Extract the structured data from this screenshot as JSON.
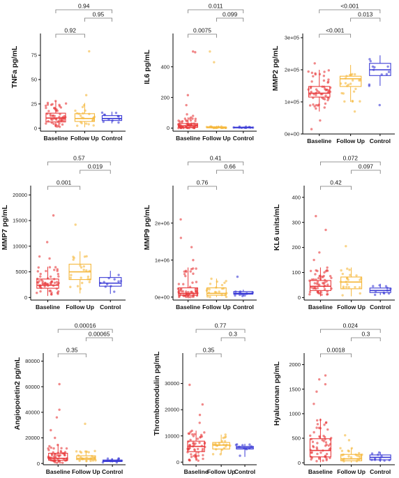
{
  "chart_data": [
    {
      "type": "box",
      "ylabel": "TNFa  pg/mL",
      "categories": [
        "Baseline",
        "Follow Up",
        "Control"
      ],
      "colors": [
        "#e8393b",
        "#f5b73b",
        "#3a3ad6"
      ],
      "ylim": [
        -3,
        93
      ],
      "yticks": [
        {
          "v": 0,
          "t": "0"
        },
        {
          "v": 25,
          "t": "25"
        },
        {
          "v": 50,
          "t": "50"
        },
        {
          "v": 75,
          "t": "75"
        }
      ],
      "boxes": [
        {
          "q1": 6.5,
          "med": 10.5,
          "q3": 15.5,
          "lo": 1,
          "hi": 28,
          "n": 55
        },
        {
          "q1": 7,
          "med": 10,
          "q3": 15,
          "lo": 1,
          "hi": 26,
          "n": 22,
          "extra": [
            79,
            34
          ]
        },
        {
          "q1": 8,
          "med": 10,
          "q3": 13,
          "lo": 5,
          "hi": 17,
          "n": 11
        }
      ],
      "comparisons": [
        {
          "from": 0,
          "to": 1,
          "label": "0.92"
        },
        {
          "from": 1,
          "to": 2,
          "label": "0.95"
        },
        {
          "from": 0,
          "to": 2,
          "label": "0.94"
        }
      ]
    },
    {
      "type": "box",
      "ylabel": "IL6  pg/mL",
      "categories": [
        "Baseline",
        "Follow Up",
        "Control"
      ],
      "colors": [
        "#e8393b",
        "#f5b73b",
        "#3a3ad6"
      ],
      "ylim": [
        -20,
        590
      ],
      "yticks": [
        {
          "v": 0,
          "t": "0"
        },
        {
          "v": 200,
          "t": "200"
        },
        {
          "v": 400,
          "t": "400"
        }
      ],
      "boxes": [
        {
          "q1": 5,
          "med": 15,
          "q3": 30,
          "lo": 0,
          "hi": 70,
          "n": 55,
          "extra": [
            500,
            495,
            215,
            150,
            90,
            80
          ]
        },
        {
          "q1": 2,
          "med": 4,
          "q3": 8,
          "lo": 0,
          "hi": 15,
          "n": 22,
          "extra": [
            430,
            500
          ]
        },
        {
          "q1": 2,
          "med": 4,
          "q3": 6,
          "lo": 1,
          "hi": 10,
          "n": 11
        }
      ],
      "comparisons": [
        {
          "from": 0,
          "to": 1,
          "label": "0.0075"
        },
        {
          "from": 1,
          "to": 2,
          "label": "0.099"
        },
        {
          "from": 0,
          "to": 2,
          "label": "0.011"
        }
      ]
    },
    {
      "type": "box",
      "ylabel": "MMP2  pg/mL",
      "categories": [
        "Baseline",
        "Follow Up",
        "Control"
      ],
      "colors": [
        "#e8393b",
        "#f5b73b",
        "#3a3ad6"
      ],
      "ylim": [
        0,
        300000
      ],
      "yticks": [
        {
          "v": 0,
          "t": "0e+00"
        },
        {
          "v": 100000,
          "t": "1e+05"
        },
        {
          "v": 200000,
          "t": "2e+05"
        },
        {
          "v": 300000,
          "t": "3e+05"
        }
      ],
      "boxes": [
        {
          "q1": 115000,
          "med": 127000,
          "q3": 148000,
          "lo": 70000,
          "hi": 200000,
          "n": 55,
          "extra": [
            15000,
            42000,
            220000
          ]
        },
        {
          "q1": 148000,
          "med": 172000,
          "q3": 180000,
          "lo": 100000,
          "hi": 215000,
          "n": 22,
          "extra": [
            70000
          ]
        },
        {
          "q1": 182000,
          "med": 200000,
          "q3": 220000,
          "lo": 150000,
          "hi": 245000,
          "n": 11,
          "extra": [
            90000
          ]
        }
      ],
      "comparisons": [
        {
          "from": 0,
          "to": 1,
          "label": "<0.001"
        },
        {
          "from": 1,
          "to": 2,
          "label": "0.013"
        },
        {
          "from": 0,
          "to": 2,
          "label": "<0.001"
        }
      ]
    },
    {
      "type": "box",
      "ylabel": "MMP7  pg/mL",
      "categories": [
        "Baseline",
        "Follow Up",
        "Control"
      ],
      "colors": [
        "#e8393b",
        "#f5b73b",
        "#3a3ad6"
      ],
      "ylim": [
        -500,
        21000
      ],
      "yticks": [
        {
          "v": 0,
          "t": "0"
        },
        {
          "v": 5000,
          "t": "5000"
        },
        {
          "v": 10000,
          "t": "10000"
        },
        {
          "v": 15000,
          "t": "15000"
        },
        {
          "v": 20000,
          "t": "20000"
        }
      ],
      "boxes": [
        {
          "q1": 1800,
          "med": 2400,
          "q3": 3600,
          "lo": 300,
          "hi": 6000,
          "n": 55,
          "extra": [
            16000,
            10800,
            8000,
            7600
          ]
        },
        {
          "q1": 3500,
          "med": 5000,
          "q3": 6500,
          "lo": 800,
          "hi": 9000,
          "n": 22,
          "extra": [
            14200
          ]
        },
        {
          "q1": 2200,
          "med": 2800,
          "q3": 3900,
          "lo": 700,
          "hi": 5200,
          "n": 11
        }
      ],
      "comparisons": [
        {
          "from": 0,
          "to": 1,
          "label": "0.001"
        },
        {
          "from": 1,
          "to": 2,
          "label": "0.019"
        },
        {
          "from": 0,
          "to": 2,
          "label": "0.57"
        }
      ]
    },
    {
      "type": "box",
      "ylabel": "MMP9  pg/mL",
      "categories": [
        "Baseline",
        "Follow Up",
        "Control"
      ],
      "colors": [
        "#e8393b",
        "#f5b73b",
        "#3a3ad6"
      ],
      "ylim": [
        -80000,
        2900000
      ],
      "yticks": [
        {
          "v": 0,
          "t": "0e+00"
        },
        {
          "v": 1000000,
          "t": "1e+06"
        },
        {
          "v": 2000000,
          "t": "2e+06"
        }
      ],
      "boxes": [
        {
          "q1": 50000,
          "med": 100000,
          "q3": 250000,
          "lo": 0,
          "hi": 800000,
          "n": 55,
          "extra": [
            2100000,
            1600000,
            1350000,
            1000000
          ]
        },
        {
          "q1": 50000,
          "med": 100000,
          "q3": 250000,
          "lo": 0,
          "hi": 500000,
          "n": 22
        },
        {
          "q1": 80000,
          "med": 100000,
          "q3": 150000,
          "lo": 20000,
          "hi": 200000,
          "n": 11,
          "extra": [
            550000
          ]
        }
      ],
      "comparisons": [
        {
          "from": 0,
          "to": 1,
          "label": "0.76"
        },
        {
          "from": 1,
          "to": 2,
          "label": "0.66"
        },
        {
          "from": 0,
          "to": 2,
          "label": "0.41"
        }
      ]
    },
    {
      "type": "box",
      "ylabel": "KL6  units/mL",
      "categories": [
        "Baseline",
        "Follow Up",
        "Control"
      ],
      "colors": [
        "#e8393b",
        "#f5b73b",
        "#3a3ad6"
      ],
      "ylim": [
        -10,
        430
      ],
      "yticks": [
        {
          "v": 0,
          "t": "0"
        },
        {
          "v": 100,
          "t": "100"
        },
        {
          "v": 200,
          "t": "200"
        },
        {
          "v": 300,
          "t": "300"
        },
        {
          "v": 400,
          "t": "400"
        }
      ],
      "boxes": [
        {
          "q1": 28,
          "med": 45,
          "q3": 68,
          "lo": 5,
          "hi": 120,
          "n": 55,
          "extra": [
            325,
            270,
            180,
            150
          ]
        },
        {
          "q1": 35,
          "med": 62,
          "q3": 82,
          "lo": 5,
          "hi": 120,
          "n": 22,
          "extra": [
            205
          ]
        },
        {
          "q1": 20,
          "med": 28,
          "q3": 38,
          "lo": 10,
          "hi": 55,
          "n": 11
        }
      ],
      "comparisons": [
        {
          "from": 0,
          "to": 1,
          "label": "0.42"
        },
        {
          "from": 1,
          "to": 2,
          "label": "0.097"
        },
        {
          "from": 0,
          "to": 2,
          "label": "0.072"
        }
      ]
    },
    {
      "type": "box",
      "ylabel": "Angiopoietin2  pg/mL",
      "categories": [
        "Baseline",
        "Follow Up",
        "Control"
      ],
      "colors": [
        "#e8393b",
        "#f5b73b",
        "#3a3ad6"
      ],
      "ylim": [
        -1000,
        83000
      ],
      "yticks": [
        {
          "v": 0,
          "t": "0"
        },
        {
          "v": 20000,
          "t": "20000"
        },
        {
          "v": 40000,
          "t": "40000"
        },
        {
          "v": 60000,
          "t": "60000"
        },
        {
          "v": 80000,
          "t": "80000"
        }
      ],
      "boxes": [
        {
          "q1": 2500,
          "med": 4000,
          "q3": 8000,
          "lo": 500,
          "hi": 15000,
          "n": 55,
          "extra": [
            62000,
            42000,
            36000,
            26000,
            20000
          ]
        },
        {
          "q1": 3000,
          "med": 4000,
          "q3": 6000,
          "lo": 1000,
          "hi": 10000,
          "n": 22,
          "extra": [
            31000
          ]
        },
        {
          "q1": 1500,
          "med": 2000,
          "q3": 2700,
          "lo": 800,
          "hi": 4000,
          "n": 11
        }
      ],
      "comparisons": [
        {
          "from": 0,
          "to": 1,
          "label": "0.35"
        },
        {
          "from": 1,
          "to": 2,
          "label": "0.00065"
        },
        {
          "from": 0,
          "to": 2,
          "label": "0.00016"
        }
      ]
    },
    {
      "type": "box",
      "ylabel": "Thrombomodulin  pg/mL",
      "categories": [
        "Baseline",
        "Follow Up",
        "Control"
      ],
      "colors": [
        "#e8393b",
        "#f5b73b",
        "#3a3ad6"
      ],
      "ylim": [
        -1000,
        40000
      ],
      "yticks": [
        {
          "v": 0,
          "t": "0"
        },
        {
          "v": 10000,
          "t": "10000"
        },
        {
          "v": 20000,
          "t": "20000"
        },
        {
          "v": 30000,
          "t": "30000"
        }
      ],
      "boxes": [
        {
          "q1": 4000,
          "med": 6000,
          "q3": 8000,
          "lo": 500,
          "hi": 12000,
          "n": 55,
          "extra": [
            29500,
            22000,
            18000,
            15000
          ]
        },
        {
          "q1": 5000,
          "med": 6500,
          "q3": 7500,
          "lo": 3000,
          "hi": 10500,
          "n": 22
        },
        {
          "q1": 5000,
          "med": 5500,
          "q3": 6000,
          "lo": 2000,
          "hi": 7000,
          "n": 11
        }
      ],
      "comparisons": [
        {
          "from": 0,
          "to": 1,
          "label": "0.35"
        },
        {
          "from": 1,
          "to": 2,
          "label": "0.3"
        },
        {
          "from": 0,
          "to": 2,
          "label": "0.77"
        }
      ]
    },
    {
      "type": "box",
      "ylabel": "Hyaluronan  pg/mL",
      "categories": [
        "Baseline",
        "Follow Up",
        "Control"
      ],
      "colors": [
        "#e8393b",
        "#f5b73b",
        "#3a3ad6"
      ],
      "ylim": [
        -40,
        2150
      ],
      "yticks": [
        {
          "v": 0,
          "t": "0"
        },
        {
          "v": 500,
          "t": "500"
        },
        {
          "v": 1000,
          "t": "1000"
        },
        {
          "v": 1500,
          "t": "1500"
        },
        {
          "v": 2000,
          "t": "2000"
        }
      ],
      "boxes": [
        {
          "q1": 120,
          "med": 250,
          "q3": 490,
          "lo": 10,
          "hi": 900,
          "n": 55,
          "extra": [
            1780,
            1700,
            1600,
            1450,
            1200
          ]
        },
        {
          "q1": 40,
          "med": 80,
          "q3": 170,
          "lo": 5,
          "hi": 300,
          "n": 22,
          "extra": [
            560,
            460
          ]
        },
        {
          "q1": 60,
          "med": 110,
          "q3": 160,
          "lo": 20,
          "hi": 220,
          "n": 11
        }
      ],
      "comparisons": [
        {
          "from": 0,
          "to": 1,
          "label": "0.0018"
        },
        {
          "from": 1,
          "to": 2,
          "label": "0.3"
        },
        {
          "from": 0,
          "to": 2,
          "label": "0.024"
        }
      ]
    }
  ]
}
